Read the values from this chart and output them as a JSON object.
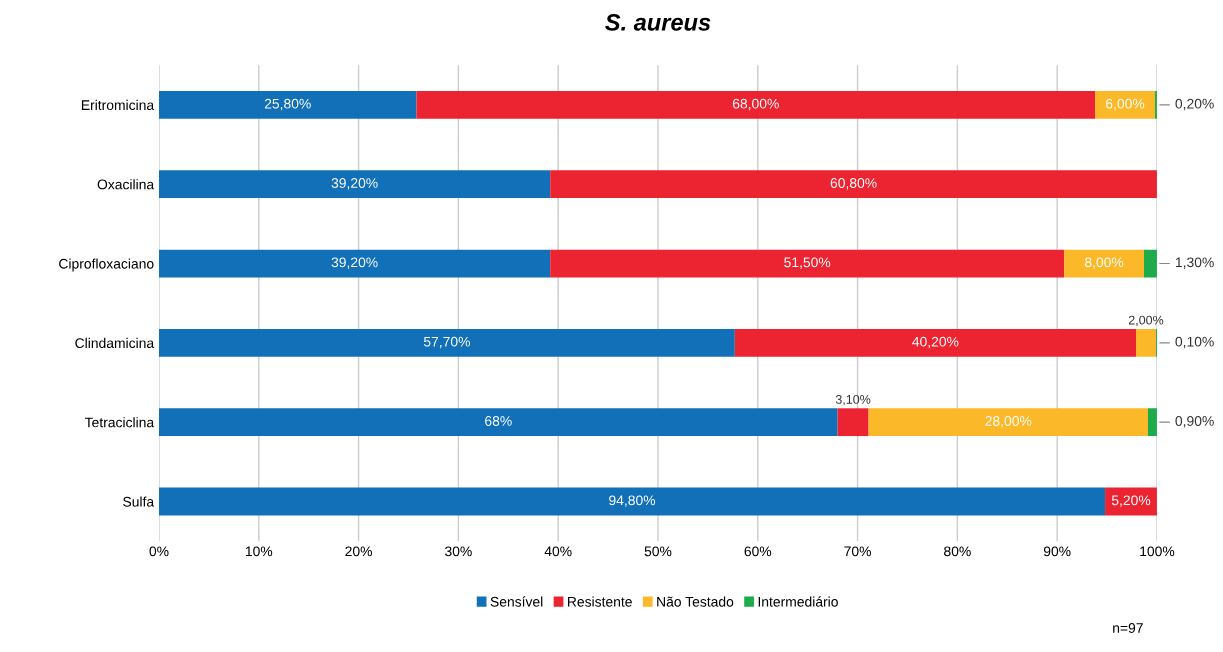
{
  "chart_data": {
    "type": "bar",
    "orientation": "horizontal",
    "stacked": true,
    "title": "S. aureus",
    "categories": [
      "Eritromicina",
      "Oxacilina",
      "Ciprofloxaciano",
      "Clindamicina",
      "Tetraciclina",
      "Sulfa"
    ],
    "series": [
      {
        "name": "Sensível",
        "color": "#1170b8",
        "values": [
          25.8,
          39.2,
          39.2,
          57.7,
          68,
          94.8
        ],
        "value_labels": [
          "25,80%",
          "39,20%",
          "39,20%",
          "57,70%",
          "68%",
          "94,80%"
        ]
      },
      {
        "name": "Resistente",
        "color": "#ec2330",
        "values": [
          68.0,
          60.8,
          51.5,
          40.2,
          3.1,
          5.2
        ],
        "value_labels": [
          "68,00%",
          "60,80%",
          "51,50%",
          "40,20%",
          "3,10%",
          "5,20%"
        ]
      },
      {
        "name": "Não Testado",
        "color": "#fbb829",
        "values": [
          6.0,
          null,
          8.0,
          2.0,
          28.0,
          null
        ],
        "value_labels": [
          "6,00%",
          null,
          "8,00%",
          "2,00%",
          "28,00%",
          null
        ]
      },
      {
        "name": "Intermediário",
        "color": "#1eab4b",
        "values": [
          0.2,
          null,
          1.3,
          0.1,
          0.9,
          null
        ],
        "value_labels": [
          "0,20%",
          null,
          "1,30%",
          "0,10%",
          "0,90%",
          null
        ]
      }
    ],
    "xlim": [
      0,
      100
    ],
    "xticks": [
      {
        "value": 0,
        "label": "0%"
      },
      {
        "value": 10,
        "label": "10%"
      },
      {
        "value": 20,
        "label": "20%"
      },
      {
        "value": 30,
        "label": "30%"
      },
      {
        "value": 40,
        "label": "40%"
      },
      {
        "value": 50,
        "label": "50%"
      },
      {
        "value": 60,
        "label": "60%"
      },
      {
        "value": 70,
        "label": "70%"
      },
      {
        "value": 80,
        "label": "80%"
      },
      {
        "value": 90,
        "label": "90%"
      },
      {
        "value": 100,
        "label": "100%"
      }
    ],
    "grid": "x",
    "legend": "bottom",
    "annotations": [
      "n=97"
    ]
  }
}
